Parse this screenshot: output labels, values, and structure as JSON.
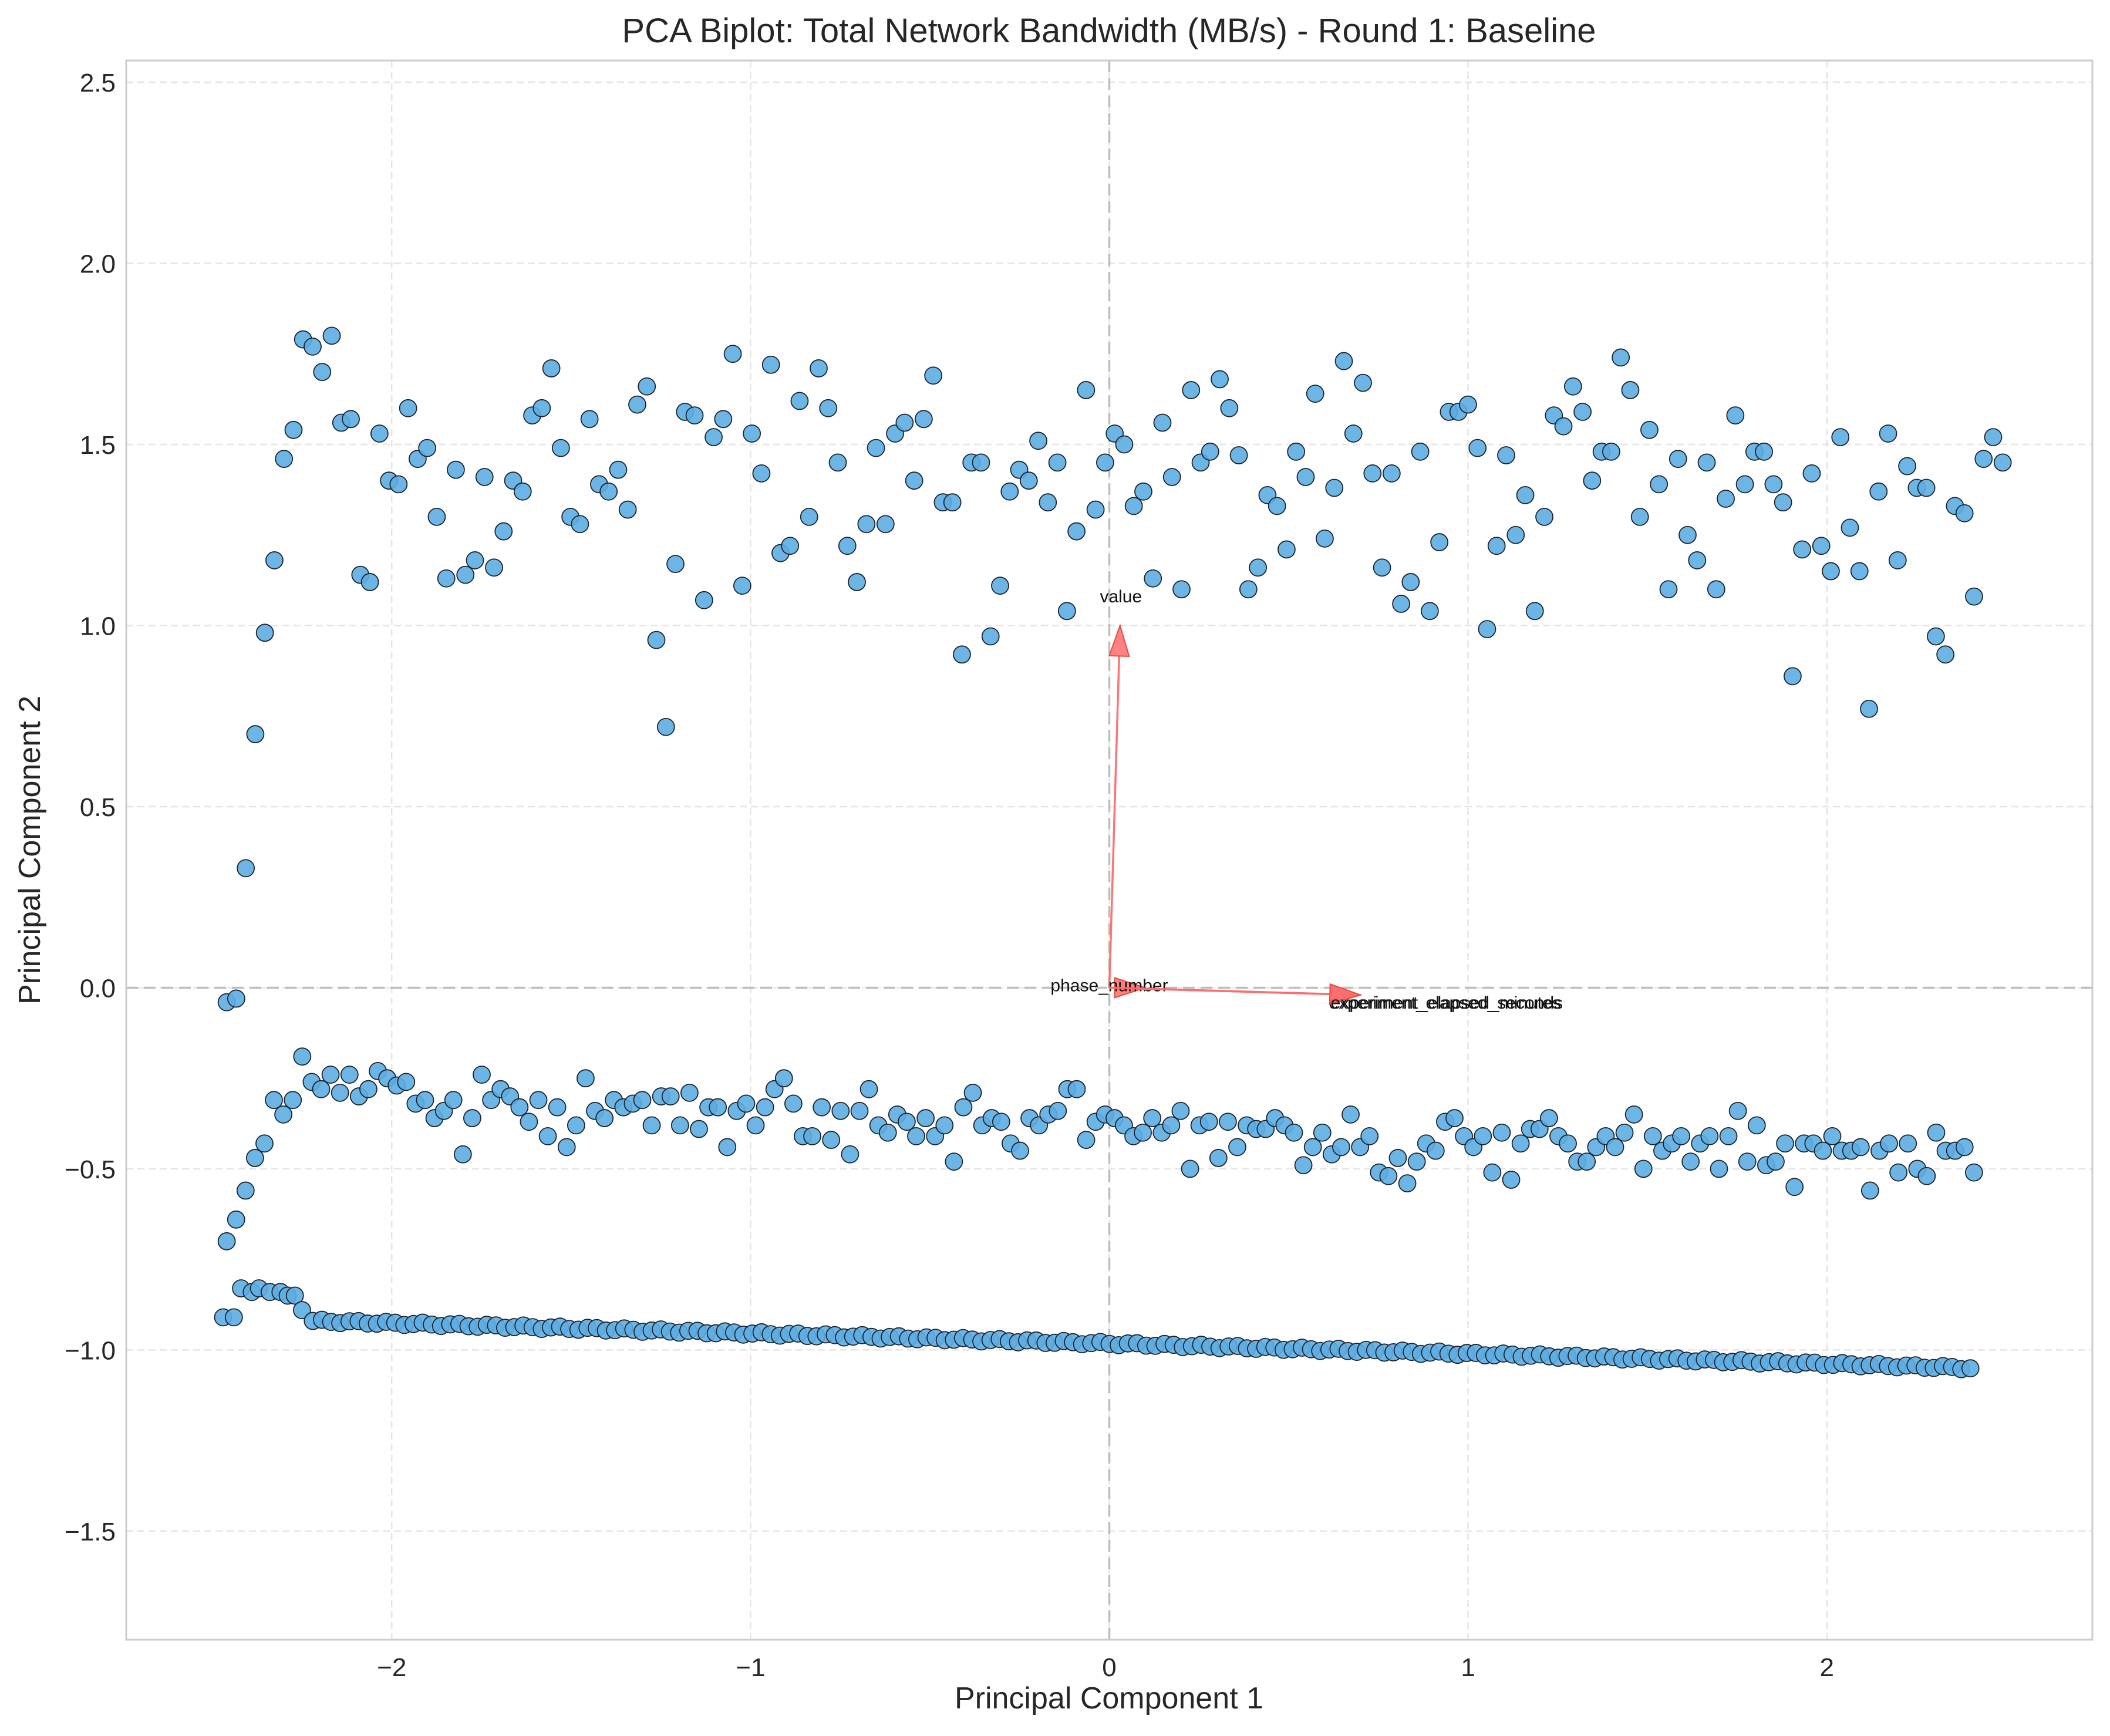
{
  "chart_data": {
    "type": "scatter",
    "title": "PCA Biplot: Total Network Bandwidth (MB/s) - Round 1: Baseline",
    "xlabel": "Principal Component 1",
    "ylabel": "Principal Component 2",
    "xlim": [
      -2.74,
      2.74
    ],
    "ylim": [
      -1.8,
      2.56
    ],
    "x_ticks": [
      -2,
      -1,
      0,
      1,
      2
    ],
    "x_tick_labels": [
      "−2",
      "−1",
      "0",
      "1",
      "2"
    ],
    "y_ticks": [
      -1.5,
      -1.0,
      -0.5,
      0.0,
      0.5,
      1.0,
      1.5,
      2.0,
      2.5
    ],
    "y_tick_labels": [
      "−1.5",
      "−1.0",
      "−0.5",
      "0.0",
      "0.5",
      "1.0",
      "1.5",
      "2.0",
      "2.5"
    ],
    "grid": true,
    "reference_lines": {
      "x": 0,
      "y": 0
    },
    "point_color": "#5dade2",
    "point_edge_color": "#1b2631",
    "arrow_color": "#ff6b6b",
    "points": {
      "upper_cluster": {
        "x_start": -2.46,
        "x_end": 2.49,
        "y": [
          -0.04,
          -0.03,
          0.33,
          0.7,
          0.98,
          1.18,
          1.46,
          1.54,
          1.79,
          1.77,
          1.7,
          1.8,
          1.56,
          1.57,
          1.14,
          1.12,
          1.53,
          1.4,
          1.39,
          1.6,
          1.46,
          1.49,
          1.3,
          1.13,
          1.43,
          1.14,
          1.18,
          1.41,
          1.16,
          1.26,
          1.4,
          1.37,
          1.58,
          1.6,
          1.71,
          1.49,
          1.3,
          1.28,
          1.57,
          1.39,
          1.37,
          1.43,
          1.32,
          1.61,
          1.66,
          0.96,
          0.72,
          1.17,
          1.59,
          1.58,
          1.07,
          1.52,
          1.57,
          1.75,
          1.11,
          1.53,
          1.42,
          1.72,
          1.2,
          1.22,
          1.62,
          1.3,
          1.71,
          1.6,
          1.45,
          1.22,
          1.12,
          1.28,
          1.49,
          1.28,
          1.53,
          1.56,
          1.4,
          1.57,
          1.69,
          1.34,
          1.34,
          0.92,
          1.45,
          1.45,
          0.97,
          1.11,
          1.37,
          1.43,
          1.4,
          1.51,
          1.34,
          1.45,
          1.04,
          1.26,
          1.65,
          1.32,
          1.45,
          1.53,
          1.5,
          1.33,
          1.37,
          1.13,
          1.56,
          1.41,
          1.1,
          1.65,
          1.45,
          1.48,
          1.68,
          1.6,
          1.47,
          1.1,
          1.16,
          1.36,
          1.33,
          1.21,
          1.48,
          1.41,
          1.64,
          1.24,
          1.38,
          1.73,
          1.53,
          1.67,
          1.42,
          1.16,
          1.42,
          1.06,
          1.12,
          1.48,
          1.04,
          1.23,
          1.59,
          1.59,
          1.61,
          1.49,
          0.99,
          1.22,
          1.47,
          1.25,
          1.36,
          1.04,
          1.3,
          1.58,
          1.55,
          1.66,
          1.59,
          1.4,
          1.48,
          1.48,
          1.74,
          1.65,
          1.3,
          1.54,
          1.39,
          1.1,
          1.46,
          1.25,
          1.18,
          1.45,
          1.1,
          1.35,
          1.58,
          1.39,
          1.48,
          1.48,
          1.39,
          1.34,
          0.86,
          1.21,
          1.42,
          1.22,
          1.15,
          1.52,
          1.27,
          1.15,
          0.77,
          1.37,
          1.53,
          1.18,
          1.44,
          1.38,
          1.38,
          0.97,
          0.92,
          1.33,
          1.31,
          1.08,
          1.46,
          1.52,
          1.45
        ]
      },
      "middle_cluster": {
        "x_start": -2.46,
        "x_end": 2.41,
        "y": [
          -0.7,
          -0.64,
          -0.56,
          -0.47,
          -0.43,
          -0.31,
          -0.35,
          -0.31,
          -0.19,
          -0.26,
          -0.28,
          -0.24,
          -0.29,
          -0.24,
          -0.3,
          -0.28,
          -0.23,
          -0.25,
          -0.27,
          -0.26,
          -0.32,
          -0.31,
          -0.36,
          -0.34,
          -0.31,
          -0.46,
          -0.36,
          -0.24,
          -0.31,
          -0.28,
          -0.3,
          -0.33,
          -0.37,
          -0.31,
          -0.41,
          -0.33,
          -0.44,
          -0.38,
          -0.25,
          -0.34,
          -0.36,
          -0.31,
          -0.33,
          -0.32,
          -0.31,
          -0.38,
          -0.3,
          -0.3,
          -0.38,
          -0.29,
          -0.39,
          -0.33,
          -0.33,
          -0.44,
          -0.34,
          -0.32,
          -0.38,
          -0.33,
          -0.28,
          -0.25,
          -0.32,
          -0.41,
          -0.41,
          -0.33,
          -0.42,
          -0.34,
          -0.46,
          -0.34,
          -0.28,
          -0.38,
          -0.4,
          -0.35,
          -0.37,
          -0.41,
          -0.36,
          -0.41,
          -0.38,
          -0.48,
          -0.33,
          -0.29,
          -0.38,
          -0.36,
          -0.37,
          -0.43,
          -0.45,
          -0.36,
          -0.38,
          -0.35,
          -0.34,
          -0.28,
          -0.28,
          -0.42,
          -0.37,
          -0.35,
          -0.36,
          -0.38,
          -0.41,
          -0.4,
          -0.36,
          -0.4,
          -0.38,
          -0.34,
          -0.5,
          -0.38,
          -0.37,
          -0.47,
          -0.37,
          -0.44,
          -0.38,
          -0.39,
          -0.39,
          -0.36,
          -0.38,
          -0.4,
          -0.49,
          -0.44,
          -0.4,
          -0.46,
          -0.44,
          -0.35,
          -0.44,
          -0.41,
          -0.51,
          -0.52,
          -0.47,
          -0.54,
          -0.48,
          -0.43,
          -0.45,
          -0.37,
          -0.36,
          -0.41,
          -0.44,
          -0.41,
          -0.51,
          -0.4,
          -0.53,
          -0.43,
          -0.39,
          -0.39,
          -0.36,
          -0.41,
          -0.43,
          -0.48,
          -0.48,
          -0.44,
          -0.41,
          -0.44,
          -0.4,
          -0.35,
          -0.5,
          -0.41,
          -0.45,
          -0.43,
          -0.41,
          -0.48,
          -0.43,
          -0.41,
          -0.5,
          -0.41,
          -0.34,
          -0.48,
          -0.38,
          -0.49,
          -0.48,
          -0.43,
          -0.55,
          -0.43,
          -0.43,
          -0.45,
          -0.41,
          -0.45,
          -0.45,
          -0.44,
          -0.56,
          -0.45,
          -0.43,
          -0.51,
          -0.43,
          -0.5,
          -0.52,
          -0.4,
          -0.45,
          -0.45,
          -0.44,
          -0.51
        ]
      },
      "lower_cluster": {
        "x": [
          -2.47,
          -2.44,
          -2.42,
          -2.39,
          -2.37,
          -2.34,
          -2.31,
          -2.29,
          -2.27,
          -2.25,
          -2.22
        ],
        "y": [
          -0.91,
          -0.91,
          -0.83,
          -0.84,
          -0.83,
          -0.84,
          -0.84,
          -0.85,
          -0.85,
          -0.89,
          -0.92
        ],
        "x_start": -2.22,
        "x_end": 2.4,
        "y_start": -0.92,
        "y_end": -1.05
      }
    },
    "loadings": [
      {
        "name": "value",
        "x": 0.03,
        "y": 1.0
      },
      {
        "name": "phase_number",
        "x": 0.1,
        "y": 0.0
      },
      {
        "name": "experiment_elapsed_seconds",
        "x": 0.7,
        "y": -0.02
      },
      {
        "name": "experiment_elapsed_minutes",
        "x": 0.7,
        "y": -0.02
      }
    ]
  }
}
